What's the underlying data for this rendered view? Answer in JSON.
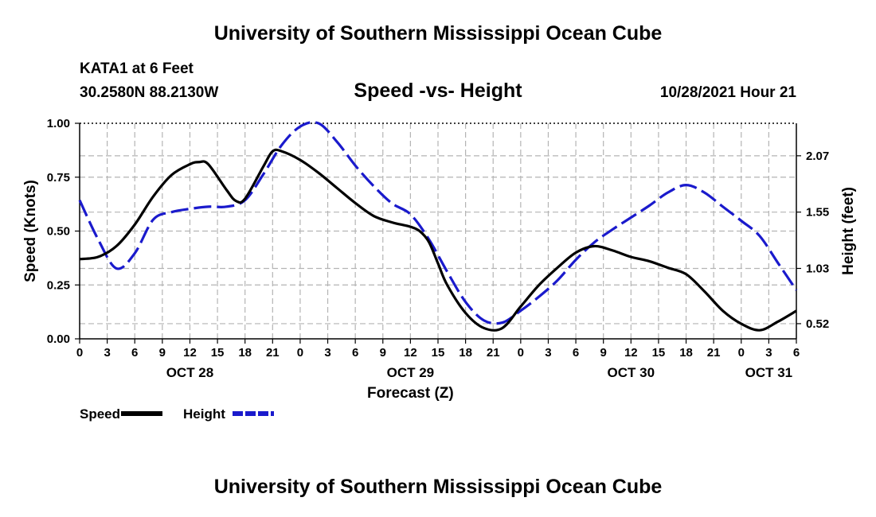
{
  "header": {
    "title": "University of Southern Mississippi Ocean Cube",
    "station": "KATA1 at 6 Feet",
    "coordinates": "30.2580N  88.2130W",
    "chart_title": "Speed -vs- Height",
    "datetime": "10/28/2021 Hour 21"
  },
  "footer": {
    "title": "University of Southern Mississippi Ocean Cube"
  },
  "chart_data": {
    "type": "line",
    "title": "Speed -vs- Height",
    "xlabel": "Forecast (Z)",
    "ylabel": "Speed (Knots)",
    "y2label": "Height (feet)",
    "x_range": [
      0,
      78
    ],
    "ylim": [
      0,
      1.0
    ],
    "y2lim": [
      0.38,
      2.37
    ],
    "x_ticks": [
      0,
      3,
      6,
      9,
      12,
      15,
      18,
      21,
      24,
      27,
      30,
      33,
      36,
      39,
      42,
      45,
      48,
      51,
      54,
      57,
      60,
      63,
      66,
      69,
      72,
      75,
      78
    ],
    "x_tick_labels": [
      "0",
      "3",
      "6",
      "9",
      "12",
      "15",
      "18",
      "21",
      "0",
      "3",
      "6",
      "9",
      "12",
      "15",
      "18",
      "21",
      "0",
      "3",
      "6",
      "9",
      "12",
      "15",
      "18",
      "21",
      "0",
      "3",
      "6"
    ],
    "date_labels": [
      {
        "label": "OCT 28",
        "x": 12
      },
      {
        "label": "OCT 29",
        "x": 36
      },
      {
        "label": "OCT 30",
        "x": 60
      },
      {
        "label": "OCT 31",
        "x": 75
      }
    ],
    "y_ticks": [
      0.0,
      0.25,
      0.5,
      0.75,
      1.0
    ],
    "y_tick_labels": [
      "0.00",
      "0.25",
      "0.50",
      "0.75",
      "1.00"
    ],
    "y2_ticks": [
      0.52,
      1.03,
      1.55,
      2.07
    ],
    "y2_tick_labels": [
      "0.52",
      "1.03",
      "1.55",
      "2.07"
    ],
    "grid": true,
    "legend_position": "bottom-left",
    "series": [
      {
        "name": "Speed",
        "axis": "left",
        "color": "#000000",
        "style": "solid",
        "x": [
          0,
          2,
          4,
          6,
          8,
          10,
          12,
          13,
          14,
          16,
          17,
          18,
          20,
          21,
          22,
          24,
          26,
          28,
          30,
          32,
          34,
          35,
          36,
          37,
          38,
          39,
          40,
          42,
          44,
          46,
          48,
          50,
          52,
          54,
          56,
          58,
          60,
          62,
          64,
          66,
          68,
          70,
          72,
          74,
          76,
          78
        ],
        "values": [
          0.37,
          0.38,
          0.43,
          0.53,
          0.66,
          0.76,
          0.81,
          0.82,
          0.81,
          0.69,
          0.64,
          0.65,
          0.8,
          0.87,
          0.87,
          0.83,
          0.77,
          0.7,
          0.63,
          0.57,
          0.54,
          0.53,
          0.52,
          0.5,
          0.45,
          0.35,
          0.25,
          0.12,
          0.05,
          0.05,
          0.15,
          0.25,
          0.33,
          0.4,
          0.43,
          0.41,
          0.38,
          0.36,
          0.33,
          0.3,
          0.22,
          0.13,
          0.07,
          0.04,
          0.08,
          0.13
        ]
      },
      {
        "name": "Height",
        "axis": "right",
        "color": "#1a1acc",
        "style": "dashed",
        "x": [
          0,
          2,
          4,
          6,
          8,
          10,
          12,
          14,
          16,
          18,
          20,
          22,
          24,
          26,
          28,
          30,
          32,
          34,
          36,
          38,
          40,
          42,
          44,
          46,
          48,
          50,
          52,
          54,
          56,
          58,
          60,
          62,
          64,
          66,
          68,
          70,
          72,
          74,
          76,
          78
        ],
        "values": [
          1.66,
          1.3,
          1.03,
          1.17,
          1.48,
          1.55,
          1.58,
          1.6,
          1.6,
          1.66,
          1.9,
          2.17,
          2.34,
          2.37,
          2.2,
          1.98,
          1.79,
          1.63,
          1.53,
          1.3,
          1.0,
          0.72,
          0.55,
          0.53,
          0.64,
          0.77,
          0.92,
          1.11,
          1.27,
          1.39,
          1.5,
          1.61,
          1.73,
          1.8,
          1.73,
          1.6,
          1.47,
          1.33,
          1.08,
          0.83
        ]
      }
    ]
  }
}
